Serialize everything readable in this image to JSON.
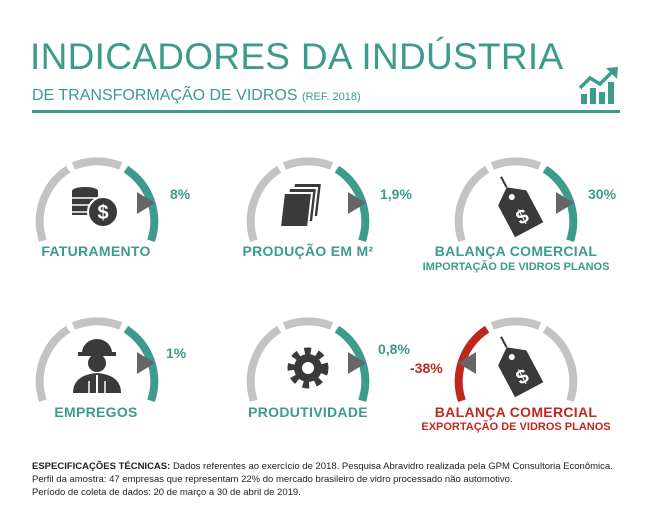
{
  "header": {
    "title": "INDICADORES DA INDÚSTRIA",
    "subtitle": "DE TRANSFORMAÇÃO DE VIDROS",
    "ref": "(REF. 2018)",
    "logo_icon": "growth-chart-icon"
  },
  "colors": {
    "accent": "#3c9b8a",
    "negative": "#c0271f",
    "gauge_gray": "#c3c3c3",
    "icon_dark": "#3a3a3a"
  },
  "indicators": [
    {
      "label": "FATURAMENTO",
      "sublabel": "",
      "value": "8%",
      "icon": "coins-dollar-icon",
      "trend": "up"
    },
    {
      "label": "PRODUÇÃO EM M²",
      "sublabel": "",
      "value": "1,9%",
      "icon": "glass-sheets-icon",
      "trend": "up"
    },
    {
      "label": "BALANÇA COMERCIAL",
      "sublabel": "IMPORTAÇÃO DE VIDROS PLANOS",
      "value": "30%",
      "icon": "price-tag-icon",
      "trend": "up"
    },
    {
      "label": "EMPREGOS",
      "sublabel": "",
      "value": "1%",
      "icon": "worker-helmet-icon",
      "trend": "up"
    },
    {
      "label": "PRODUTIVIDADE",
      "sublabel": "",
      "value": "0,8%",
      "icon": "gear-icon",
      "trend": "up"
    },
    {
      "label": "BALANÇA COMERCIAL",
      "sublabel": "EXPORTAÇÃO DE VIDROS PLANOS",
      "value": "-38%",
      "icon": "price-tag-icon",
      "trend": "down"
    }
  ],
  "notes": {
    "heading": "ESPECIFICAÇÕES TÉCNICAS:",
    "line1": "Dados referentes ao exercício de 2018. Pesquisa Abravidro realizada pela GPM Consultoria Econômica.",
    "line2": "Perfil da amostra: 47 empresas que representam 22% do mercado brasileiro de vidro processado não automotivo.",
    "line3": "Período de coleta de dados: 20 de março a 30 de abril de 2019."
  }
}
